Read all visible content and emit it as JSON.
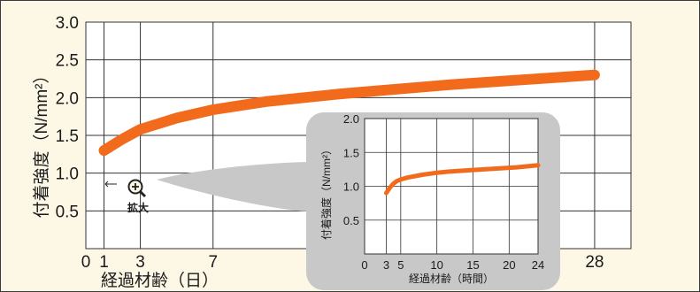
{
  "chart_data": [
    {
      "type": "line",
      "xlabel": "経過材齢（日）",
      "ylabel": "付着強度（N/mm²）",
      "xlim": [
        0,
        30
      ],
      "ylim": [
        0,
        3.0
      ],
      "xticks": [
        0,
        1,
        3,
        7,
        28
      ],
      "yticks": [
        0.5,
        1.0,
        1.5,
        2.0,
        2.5,
        3.0
      ],
      "ytick_labels": [
        "0.5",
        "1.0",
        "1.5",
        "2.0",
        "2.5",
        "3.0"
      ],
      "grid": true,
      "series": [
        {
          "color": "#f26a1b",
          "x": [
            1,
            2,
            3,
            5,
            7,
            10,
            14,
            20,
            28
          ],
          "y": [
            1.3,
            1.45,
            1.58,
            1.73,
            1.84,
            1.95,
            2.05,
            2.17,
            2.3
          ]
        }
      ],
      "zoom_annotation": {
        "label": "拡大",
        "x": 1,
        "y": 1.0,
        "icon": "zoom-in-icon"
      }
    },
    {
      "type": "line",
      "xlabel": "経過材齢（時間）",
      "ylabel": "付着強度（N/mm²）",
      "xlim": [
        0,
        24
      ],
      "ylim": [
        0,
        2.0
      ],
      "xticks": [
        0,
        3,
        5,
        10,
        15,
        20,
        24
      ],
      "yticks": [
        0.5,
        1.0,
        1.5,
        2.0
      ],
      "ytick_labels": [
        "0.5",
        "1.0",
        "1.5",
        "2.0"
      ],
      "grid": true,
      "series": [
        {
          "color": "#f26a1b",
          "x": [
            3,
            3.5,
            4,
            4.5,
            5,
            6,
            8,
            10,
            12,
            15,
            18,
            21,
            24
          ],
          "y": [
            0.9,
            0.98,
            1.04,
            1.08,
            1.1,
            1.13,
            1.17,
            1.2,
            1.22,
            1.24,
            1.26,
            1.28,
            1.31
          ]
        }
      ]
    }
  ]
}
